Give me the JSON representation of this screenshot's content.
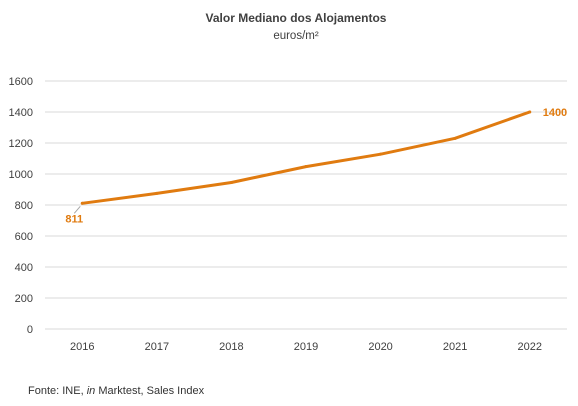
{
  "chart_data": {
    "type": "line",
    "title": "Valor Mediano dos Alojamentos",
    "subtitle": "euros/m²",
    "xlabel": "",
    "ylabel": "",
    "categories": [
      "2016",
      "2017",
      "2018",
      "2019",
      "2020",
      "2021",
      "2022"
    ],
    "series": [
      {
        "values": [
          811,
          875,
          945,
          1048,
          1128,
          1230,
          1400
        ]
      }
    ],
    "ylim": [
      0,
      1600
    ],
    "yticks": [
      0,
      200,
      400,
      600,
      800,
      1000,
      1200,
      1400,
      1600
    ],
    "grid": true,
    "legend": "none",
    "data_labels": [
      {
        "index": 0,
        "text": "811"
      },
      {
        "index": 6,
        "text": "1400"
      }
    ],
    "line_color": "#E07B10",
    "grid_color": "#D9D9D9"
  },
  "source": {
    "prefix": "Fonte: INE, ",
    "italic": "in",
    "suffix": " Marktest, Sales Index"
  }
}
